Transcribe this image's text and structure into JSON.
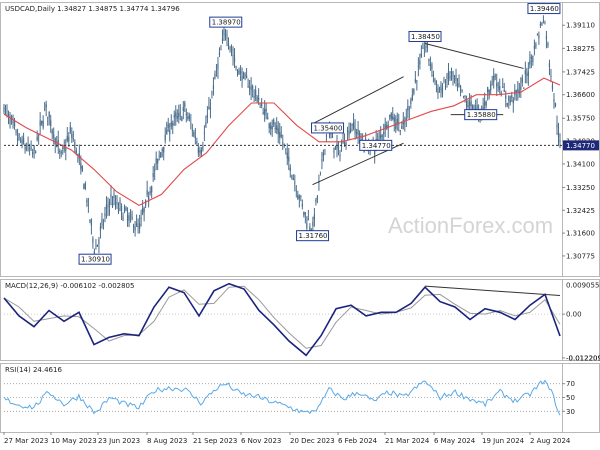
{
  "chart_data": [
    {
      "type": "ohlc",
      "title": "USDCAD,Daily  1.34827 1.34875 1.34774 1.34796",
      "symbol": "USDCAD",
      "timeframe": "Daily",
      "ohlc_header": {
        "open": 1.34827,
        "high": 1.34875,
        "low": 1.34774,
        "close": 1.34796
      },
      "price_tag": "1.34770",
      "ylim": [
        1.3005,
        1.3995
      ],
      "y_ticks": [
        "1.39110",
        "1.38275",
        "1.37425",
        "1.36600",
        "1.35750",
        "1.34920",
        "1.34100",
        "1.33250",
        "1.32425",
        "1.31600",
        "1.30775"
      ],
      "x_ticks": [
        "27 Mar 2023",
        "10 May 2023",
        "23 Jun 2023",
        "8 Aug 2023",
        "21 Sep 2023",
        "6 Nov 2023",
        "20 Dec 2023",
        "6 Feb 2024",
        "21 Mar 2024",
        "6 May 2024",
        "19 Jun 2024",
        "2 Aug 2024"
      ],
      "pivot_labels": [
        {
          "text": "1.38970",
          "date": "2023-10-13",
          "price": 1.3897
        },
        {
          "text": "1.30910",
          "date": "2023-06-13",
          "price": 1.3091
        },
        {
          "text": "1.31760",
          "date": "2024-01-02",
          "price": 1.3176
        },
        {
          "text": "1.35400",
          "date": "2024-01-16",
          "price": 1.354
        },
        {
          "text": "1.34770",
          "date": "2024-03-01",
          "price": 1.3477
        },
        {
          "text": "1.38450",
          "date": "2024-04-16",
          "price": 1.3845
        },
        {
          "text": "1.35880",
          "date": "2024-06-07",
          "price": 1.3588
        },
        {
          "text": "1.39460",
          "date": "2024-08-05",
          "price": 1.3946
        }
      ],
      "x_range": [
        "2023-03-20",
        "2024-08-20"
      ],
      "moving_average": [
        {
          "date": "2023-03-20",
          "value": 1.359
        },
        {
          "date": "2023-04-10",
          "value": 1.354
        },
        {
          "date": "2023-05-01",
          "value": 1.35
        },
        {
          "date": "2023-05-22",
          "value": 1.346
        },
        {
          "date": "2023-06-12",
          "value": 1.339
        },
        {
          "date": "2023-07-03",
          "value": 1.331
        },
        {
          "date": "2023-07-24",
          "value": 1.326
        },
        {
          "date": "2023-08-14",
          "value": 1.33
        },
        {
          "date": "2023-09-04",
          "value": 1.339
        },
        {
          "date": "2023-09-25",
          "value": 1.345
        },
        {
          "date": "2023-10-16",
          "value": 1.355
        },
        {
          "date": "2023-11-06",
          "value": 1.363
        },
        {
          "date": "2023-11-27",
          "value": 1.363
        },
        {
          "date": "2023-12-18",
          "value": 1.355
        },
        {
          "date": "2024-01-08",
          "value": 1.349
        },
        {
          "date": "2024-01-29",
          "value": 1.349
        },
        {
          "date": "2024-02-19",
          "value": 1.351
        },
        {
          "date": "2024-03-11",
          "value": 1.354
        },
        {
          "date": "2024-04-01",
          "value": 1.357
        },
        {
          "date": "2024-04-22",
          "value": 1.36
        },
        {
          "date": "2024-05-13",
          "value": 1.362
        },
        {
          "date": "2024-06-03",
          "value": 1.366
        },
        {
          "date": "2024-06-24",
          "value": 1.366
        },
        {
          "date": "2024-07-15",
          "value": 1.367
        },
        {
          "date": "2024-08-05",
          "value": 1.372
        },
        {
          "date": "2024-08-20",
          "value": 1.3695
        }
      ],
      "price_path": [
        {
          "date": "2023-03-20",
          "value": 1.3615
        },
        {
          "date": "2023-04-03",
          "value": 1.3495
        },
        {
          "date": "2023-04-17",
          "value": 1.3445
        },
        {
          "date": "2023-04-28",
          "value": 1.3617
        },
        {
          "date": "2023-05-12",
          "value": 1.3435
        },
        {
          "date": "2023-05-22",
          "value": 1.3525
        },
        {
          "date": "2023-06-02",
          "value": 1.3365
        },
        {
          "date": "2023-06-13",
          "value": 1.3091
        },
        {
          "date": "2023-06-27",
          "value": 1.3285
        },
        {
          "date": "2023-07-10",
          "value": 1.3235
        },
        {
          "date": "2023-07-24",
          "value": 1.3175
        },
        {
          "date": "2023-08-07",
          "value": 1.3375
        },
        {
          "date": "2023-08-21",
          "value": 1.3545
        },
        {
          "date": "2023-09-05",
          "value": 1.3605
        },
        {
          "date": "2023-09-20",
          "value": 1.3455
        },
        {
          "date": "2023-10-04",
          "value": 1.3735
        },
        {
          "date": "2023-10-13",
          "value": 1.3897
        },
        {
          "date": "2023-10-23",
          "value": 1.3755
        },
        {
          "date": "2023-11-06",
          "value": 1.3685
        },
        {
          "date": "2023-11-20",
          "value": 1.3585
        },
        {
          "date": "2023-12-04",
          "value": 1.3505
        },
        {
          "date": "2023-12-15",
          "value": 1.3365
        },
        {
          "date": "2023-12-27",
          "value": 1.3215
        },
        {
          "date": "2024-01-02",
          "value": 1.3176
        },
        {
          "date": "2024-01-16",
          "value": 1.354
        },
        {
          "date": "2024-01-26",
          "value": 1.3445
        },
        {
          "date": "2024-02-08",
          "value": 1.3555
        },
        {
          "date": "2024-02-20",
          "value": 1.3475
        },
        {
          "date": "2024-03-01",
          "value": 1.3477
        },
        {
          "date": "2024-03-15",
          "value": 1.3585
        },
        {
          "date": "2024-03-27",
          "value": 1.3535
        },
        {
          "date": "2024-04-16",
          "value": 1.3845
        },
        {
          "date": "2024-04-29",
          "value": 1.3665
        },
        {
          "date": "2024-05-10",
          "value": 1.3735
        },
        {
          "date": "2024-05-24",
          "value": 1.3635
        },
        {
          "date": "2024-06-07",
          "value": 1.3588
        },
        {
          "date": "2024-06-19",
          "value": 1.3725
        },
        {
          "date": "2024-07-03",
          "value": 1.3635
        },
        {
          "date": "2024-07-17",
          "value": 1.3695
        },
        {
          "date": "2024-08-05",
          "value": 1.3946
        },
        {
          "date": "2024-08-12",
          "value": 1.3725
        },
        {
          "date": "2024-08-20",
          "value": 1.3477
        }
      ],
      "trendlines": [
        {
          "name": "channel-upper",
          "from": {
            "date": "2024-01-02",
            "value": 1.3555
          },
          "to": {
            "date": "2024-03-27",
            "value": 1.3725
          }
        },
        {
          "name": "channel-lower",
          "from": {
            "date": "2024-01-02",
            "value": 1.3335
          },
          "to": {
            "date": "2024-03-27",
            "value": 1.3485
          }
        },
        {
          "name": "top-resistance",
          "from": {
            "date": "2024-04-16",
            "value": 1.3845
          },
          "to": {
            "date": "2024-07-17",
            "value": 1.3755
          }
        },
        {
          "name": "support-1.35880",
          "from": {
            "date": "2024-05-10",
            "value": 1.3588
          },
          "to": {
            "date": "2024-06-28",
            "value": 1.3588
          }
        },
        {
          "name": "support-1.34770",
          "from": {
            "date": "2024-02-26",
            "value": 1.3477
          },
          "to": {
            "date": "2024-03-08",
            "value": 1.3477
          }
        }
      ],
      "current_price_line": 1.3477,
      "watermark": "ActionForex.com",
      "colors": {
        "candles": "#4a6d8c",
        "moving_average": "#e34a4a",
        "trendline": "#333333",
        "label_border": "#1f3c96"
      }
    },
    {
      "type": "line",
      "title": "MACD(12,26,9) -0.006102 -0.002805",
      "indicator": "MACD",
      "params": [
        12,
        26,
        9
      ],
      "current": {
        "macd": -0.006102,
        "signal": -0.002805
      },
      "ylim": [
        -0.0128,
        0.0098
      ],
      "y_ticks": [
        "0.009055",
        "0.00",
        "-0.012209"
      ],
      "x_range": [
        "2023-03-20",
        "2024-08-20"
      ],
      "series": [
        {
          "values": [
            {
              "date": "2023-03-20",
              "value": 0.0045
            },
            {
              "date": "2023-04-03",
              "value": -0.0005
            },
            {
              "date": "2023-04-17",
              "value": -0.0035
            },
            {
              "date": "2023-05-01",
              "value": 0.001
            },
            {
              "date": "2023-05-15",
              "value": -0.002
            },
            {
              "date": "2023-05-29",
              "value": 0.0005
            },
            {
              "date": "2023-06-12",
              "value": -0.0085
            },
            {
              "date": "2023-06-26",
              "value": -0.0065
            },
            {
              "date": "2023-07-10",
              "value": -0.0055
            },
            {
              "date": "2023-07-24",
              "value": -0.006
            },
            {
              "date": "2023-08-07",
              "value": 0.002
            },
            {
              "date": "2023-08-21",
              "value": 0.0075
            },
            {
              "date": "2023-09-04",
              "value": 0.006
            },
            {
              "date": "2023-09-18",
              "value": -0.0005
            },
            {
              "date": "2023-10-02",
              "value": 0.0065
            },
            {
              "date": "2023-10-16",
              "value": 0.0085
            },
            {
              "date": "2023-10-30",
              "value": 0.007
            },
            {
              "date": "2023-11-13",
              "value": 0.001
            },
            {
              "date": "2023-11-27",
              "value": -0.003
            },
            {
              "date": "2023-12-11",
              "value": -0.0075
            },
            {
              "date": "2023-12-27",
              "value": -0.0115
            },
            {
              "date": "2024-01-10",
              "value": -0.006
            },
            {
              "date": "2024-01-24",
              "value": 0.0015
            },
            {
              "date": "2024-02-07",
              "value": 0.0025
            },
            {
              "date": "2024-02-21",
              "value": -0.0005
            },
            {
              "date": "2024-03-06",
              "value": 0.0005
            },
            {
              "date": "2024-03-20",
              "value": 0.0005
            },
            {
              "date": "2024-04-03",
              "value": 0.003
            },
            {
              "date": "2024-04-16",
              "value": 0.0075
            },
            {
              "date": "2024-04-30",
              "value": 0.0035
            },
            {
              "date": "2024-05-14",
              "value": 0.002
            },
            {
              "date": "2024-05-28",
              "value": -0.0015
            },
            {
              "date": "2024-06-11",
              "value": 0.0015
            },
            {
              "date": "2024-06-25",
              "value": 0.0005
            },
            {
              "date": "2024-07-09",
              "value": -0.0015
            },
            {
              "date": "2024-07-23",
              "value": 0.0025
            },
            {
              "date": "2024-08-06",
              "value": 0.0055
            },
            {
              "date": "2024-08-20",
              "value": -0.0061
            }
          ]
        }
      ],
      "divergence_line": {
        "from": {
          "date": "2024-04-16",
          "value": 0.0078
        },
        "to": {
          "date": "2024-08-20",
          "value": 0.0052
        }
      },
      "colors": {
        "macd": "#1a237e",
        "signal": "#9a9a9a",
        "divergence": "#333333"
      }
    },
    {
      "type": "line",
      "title": "RSI(14) 24.4616",
      "indicator": "RSI",
      "period": 14,
      "current": 24.4616,
      "ylim": [
        0,
        100
      ],
      "levels": [
        70,
        50,
        30
      ],
      "y_ticks": [
        "70",
        "50",
        "30"
      ],
      "x_range": [
        "2023-03-20",
        "2024-08-20"
      ],
      "series": [
        {
          "values": [
            {
              "date": "2023-03-20",
              "value": 48
            },
            {
              "date": "2023-04-03",
              "value": 39
            },
            {
              "date": "2023-04-17",
              "value": 36
            },
            {
              "date": "2023-05-01",
              "value": 58
            },
            {
              "date": "2023-05-15",
              "value": 40
            },
            {
              "date": "2023-05-29",
              "value": 52
            },
            {
              "date": "2023-06-13",
              "value": 27
            },
            {
              "date": "2023-06-27",
              "value": 50
            },
            {
              "date": "2023-07-10",
              "value": 41
            },
            {
              "date": "2023-07-24",
              "value": 35
            },
            {
              "date": "2023-08-07",
              "value": 60
            },
            {
              "date": "2023-08-21",
              "value": 64
            },
            {
              "date": "2023-09-05",
              "value": 62
            },
            {
              "date": "2023-09-20",
              "value": 42
            },
            {
              "date": "2023-10-04",
              "value": 63
            },
            {
              "date": "2023-10-13",
              "value": 70
            },
            {
              "date": "2023-10-27",
              "value": 55
            },
            {
              "date": "2023-11-10",
              "value": 52
            },
            {
              "date": "2023-11-24",
              "value": 44
            },
            {
              "date": "2023-12-08",
              "value": 38
            },
            {
              "date": "2023-12-27",
              "value": 27
            },
            {
              "date": "2024-01-08",
              "value": 35
            },
            {
              "date": "2024-01-17",
              "value": 62
            },
            {
              "date": "2024-01-31",
              "value": 48
            },
            {
              "date": "2024-02-14",
              "value": 58
            },
            {
              "date": "2024-02-28",
              "value": 44
            },
            {
              "date": "2024-03-13",
              "value": 58
            },
            {
              "date": "2024-03-27",
              "value": 50
            },
            {
              "date": "2024-04-16",
              "value": 74
            },
            {
              "date": "2024-04-30",
              "value": 50
            },
            {
              "date": "2024-05-14",
              "value": 58
            },
            {
              "date": "2024-05-28",
              "value": 48
            },
            {
              "date": "2024-06-11",
              "value": 40
            },
            {
              "date": "2024-06-25",
              "value": 58
            },
            {
              "date": "2024-07-09",
              "value": 45
            },
            {
              "date": "2024-07-23",
              "value": 55
            },
            {
              "date": "2024-08-05",
              "value": 75
            },
            {
              "date": "2024-08-13",
              "value": 55
            },
            {
              "date": "2024-08-20",
              "value": 24.5
            }
          ]
        }
      ],
      "colors": {
        "rsi": "#5aa9e6",
        "level": "#9a9a9a"
      }
    }
  ]
}
